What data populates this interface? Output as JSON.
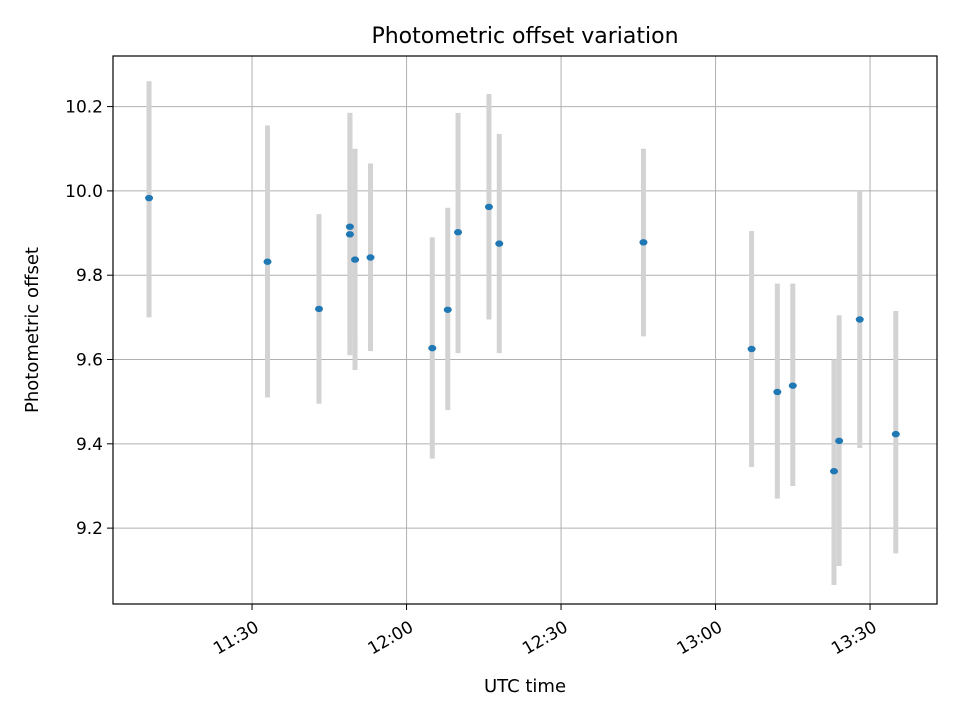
{
  "chart_data": {
    "type": "scatter",
    "title": "Photometric offset variation",
    "xlabel": "UTC time",
    "ylabel": "Photometric offset",
    "grid": true,
    "x_ticks": [
      "11:30",
      "12:00",
      "12:30",
      "13:00",
      "13:30"
    ],
    "y_ticks": [
      "9.2",
      "9.4",
      "9.6",
      "9.8",
      "10.0",
      "10.2"
    ],
    "xlim": [
      "11:03",
      "13:43"
    ],
    "ylim": [
      9.02,
      10.32
    ],
    "colors": {
      "marker": "#1f77b4",
      "errorbar": "#d3d3d3",
      "grid": "#b0b0b0"
    },
    "points": [
      {
        "x": "11:10",
        "y": 9.983,
        "ylo": 9.7,
        "yhi": 10.26
      },
      {
        "x": "11:33",
        "y": 9.832,
        "ylo": 9.51,
        "yhi": 10.155
      },
      {
        "x": "11:43",
        "y": 9.72,
        "ylo": 9.495,
        "yhi": 9.945
      },
      {
        "x": "11:49",
        "y": 9.915,
        "ylo": 9.65,
        "yhi": 10.185
      },
      {
        "x": "11:49",
        "y": 9.897,
        "ylo": 9.61,
        "yhi": 10.185
      },
      {
        "x": "11:50",
        "y": 9.837,
        "ylo": 9.575,
        "yhi": 10.1
      },
      {
        "x": "11:53",
        "y": 9.842,
        "ylo": 9.62,
        "yhi": 10.065
      },
      {
        "x": "12:05",
        "y": 9.627,
        "ylo": 9.365,
        "yhi": 9.89
      },
      {
        "x": "12:08",
        "y": 9.718,
        "ylo": 9.48,
        "yhi": 9.96
      },
      {
        "x": "12:10",
        "y": 9.902,
        "ylo": 9.615,
        "yhi": 10.185
      },
      {
        "x": "12:16",
        "y": 9.962,
        "ylo": 9.695,
        "yhi": 10.23
      },
      {
        "x": "12:18",
        "y": 9.875,
        "ylo": 9.615,
        "yhi": 10.135
      },
      {
        "x": "12:46",
        "y": 9.878,
        "ylo": 9.655,
        "yhi": 10.1
      },
      {
        "x": "13:07",
        "y": 9.625,
        "ylo": 9.345,
        "yhi": 9.905
      },
      {
        "x": "13:12",
        "y": 9.523,
        "ylo": 9.27,
        "yhi": 9.78
      },
      {
        "x": "13:15",
        "y": 9.538,
        "ylo": 9.3,
        "yhi": 9.78
      },
      {
        "x": "13:23",
        "y": 9.335,
        "ylo": 9.065,
        "yhi": 9.6
      },
      {
        "x": "13:24",
        "y": 9.407,
        "ylo": 9.11,
        "yhi": 9.705
      },
      {
        "x": "13:28",
        "y": 9.695,
        "ylo": 9.39,
        "yhi": 10.0
      },
      {
        "x": "13:35",
        "y": 9.423,
        "ylo": 9.14,
        "yhi": 9.715
      }
    ]
  }
}
